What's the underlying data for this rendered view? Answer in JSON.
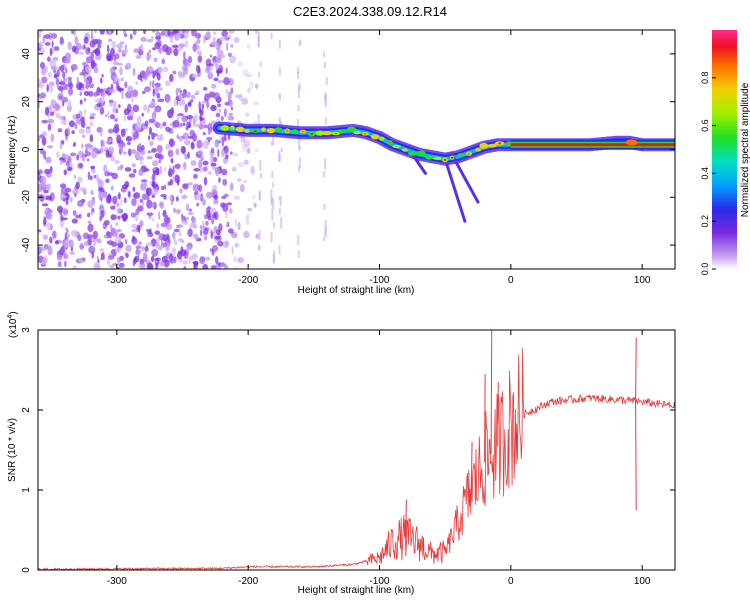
{
  "title": "C2E3.2024.338.09.12.R14",
  "chart_data": [
    {
      "type": "heatmap",
      "xlabel": "Height of straight line (km)",
      "ylabel": "Frequency (Hz)",
      "xlim": [
        -360,
        125
      ],
      "ylim": [
        -50,
        50
      ],
      "x_ticks": [
        -300,
        -200,
        -100,
        0,
        100
      ],
      "y_ticks": [
        -40,
        -20,
        0,
        20,
        40
      ],
      "colorbar": {
        "label": "Normalized spectral amplitude",
        "range": [
          0,
          1
        ],
        "ticks": [
          0.0,
          0.2,
          0.4,
          0.6,
          0.8
        ]
      },
      "ridge": {
        "x": [
          -222,
          -200,
          -180,
          -160,
          -140,
          -120,
          -110,
          -100,
          -90,
          -80,
          -70,
          -60,
          -50,
          -40,
          -30,
          -20,
          -10,
          0,
          20,
          40,
          60,
          80,
          90,
          100,
          125
        ],
        "freq": [
          9,
          8,
          8,
          7,
          7,
          8,
          7,
          5,
          2,
          0,
          -2,
          -3,
          -4,
          -3,
          -1,
          1,
          2,
          2,
          2,
          2,
          2,
          3,
          3,
          2,
          2
        ]
      },
      "noise_region_xmax": -212
    },
    {
      "type": "line",
      "xlabel": "Height of straight line (km)",
      "ylabel": "SNR (10 * v/v)",
      "scale_label_base": "(x10",
      "scale_label_exp": "4",
      "scale_label_close": ")",
      "xlim": [
        -360,
        125
      ],
      "ylim": [
        0,
        3
      ],
      "x_ticks": [
        -300,
        -200,
        -100,
        0,
        100
      ],
      "y_ticks": [
        0,
        1,
        2,
        3
      ],
      "color": "#e83a3a",
      "envelope": {
        "x": [
          -360,
          -220,
          -200,
          -150,
          -120,
          -100,
          -90,
          -80,
          -70,
          -60,
          -50,
          -40,
          -30,
          -20,
          -10,
          0,
          10,
          20,
          30,
          40,
          60,
          80,
          90,
          100,
          110,
          125
        ],
        "y": [
          0.01,
          0.02,
          0.04,
          0.04,
          0.07,
          0.15,
          0.35,
          0.42,
          0.33,
          0.2,
          0.22,
          0.6,
          1.0,
          1.35,
          1.55,
          1.8,
          1.95,
          2.02,
          2.1,
          2.12,
          2.15,
          2.13,
          2.12,
          2.1,
          2.08,
          2.05
        ]
      },
      "spikes": [
        {
          "x": -80,
          "y": 0.88
        },
        {
          "x": -30,
          "y": 1.6
        },
        {
          "x": -20,
          "y": 2.45
        },
        {
          "x": -15,
          "y": 3.0
        },
        {
          "x": -10,
          "y": 2.35
        },
        {
          "x": 95,
          "y": 2.9
        },
        {
          "x": 95,
          "y": 0.75
        }
      ]
    }
  ]
}
